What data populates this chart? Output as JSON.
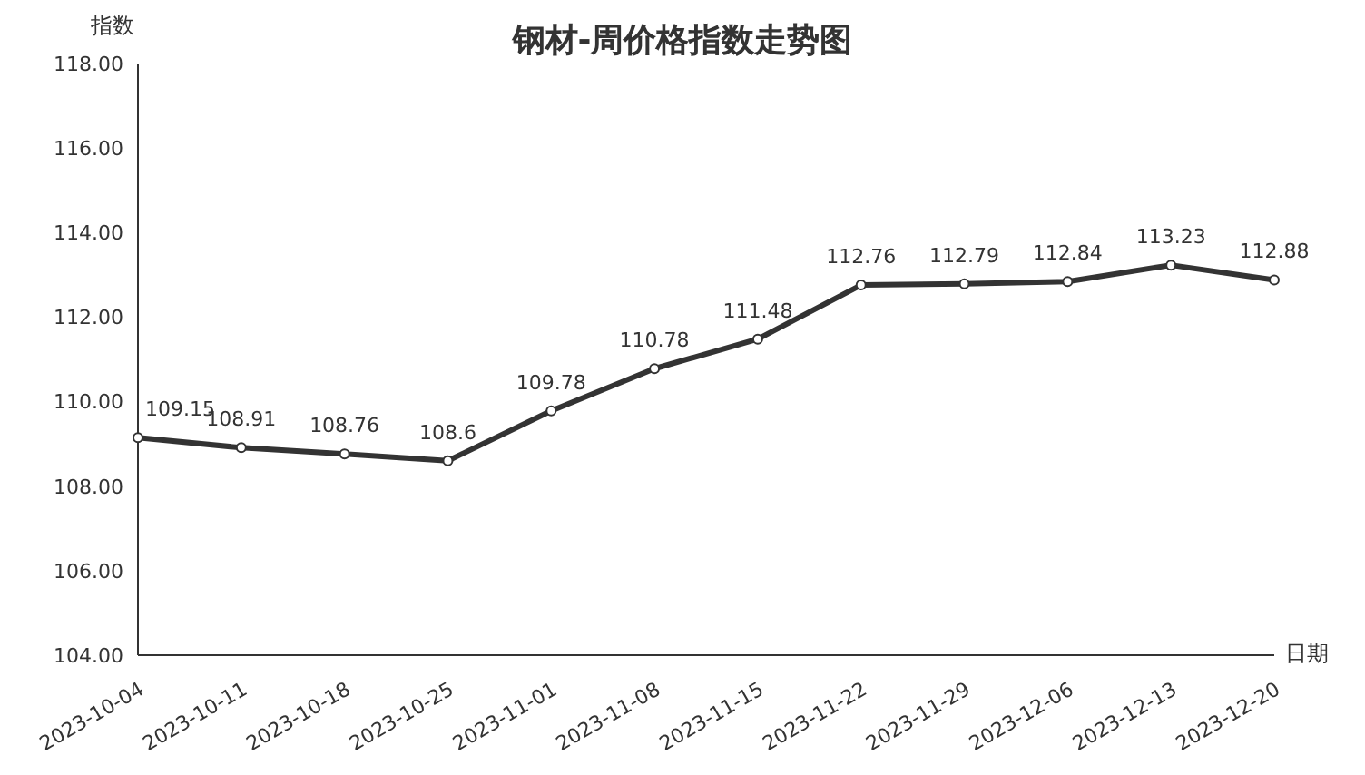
{
  "chart_data": {
    "type": "line",
    "title": "钢材-周价格指数走势图",
    "xlabel": "日期",
    "ylabel": "指数",
    "categories": [
      "2023-10-04",
      "2023-10-11",
      "2023-10-18",
      "2023-10-25",
      "2023-11-01",
      "2023-11-08",
      "2023-11-15",
      "2023-11-22",
      "2023-11-29",
      "2023-12-06",
      "2023-12-13",
      "2023-12-20"
    ],
    "series": [
      {
        "color": "#333333",
        "values": [
          109.15,
          108.91,
          108.76,
          108.6,
          109.78,
          110.78,
          111.48,
          112.76,
          112.79,
          112.84,
          113.23,
          112.88
        ]
      }
    ],
    "ylim": [
      104,
      118
    ],
    "yticks": [
      {
        "value": 104,
        "label": "104.00"
      },
      {
        "value": 106,
        "label": "106.00"
      },
      {
        "value": 108,
        "label": "108.00"
      },
      {
        "value": 110,
        "label": "110.00"
      },
      {
        "value": 112,
        "label": "112.00"
      },
      {
        "value": 114,
        "label": "114.00"
      },
      {
        "value": 116,
        "label": "116.00"
      },
      {
        "value": 118,
        "label": "118.00"
      }
    ],
    "data_labels": true,
    "marker": "circle",
    "line_style": "solid",
    "grid": false,
    "legend": false
  }
}
